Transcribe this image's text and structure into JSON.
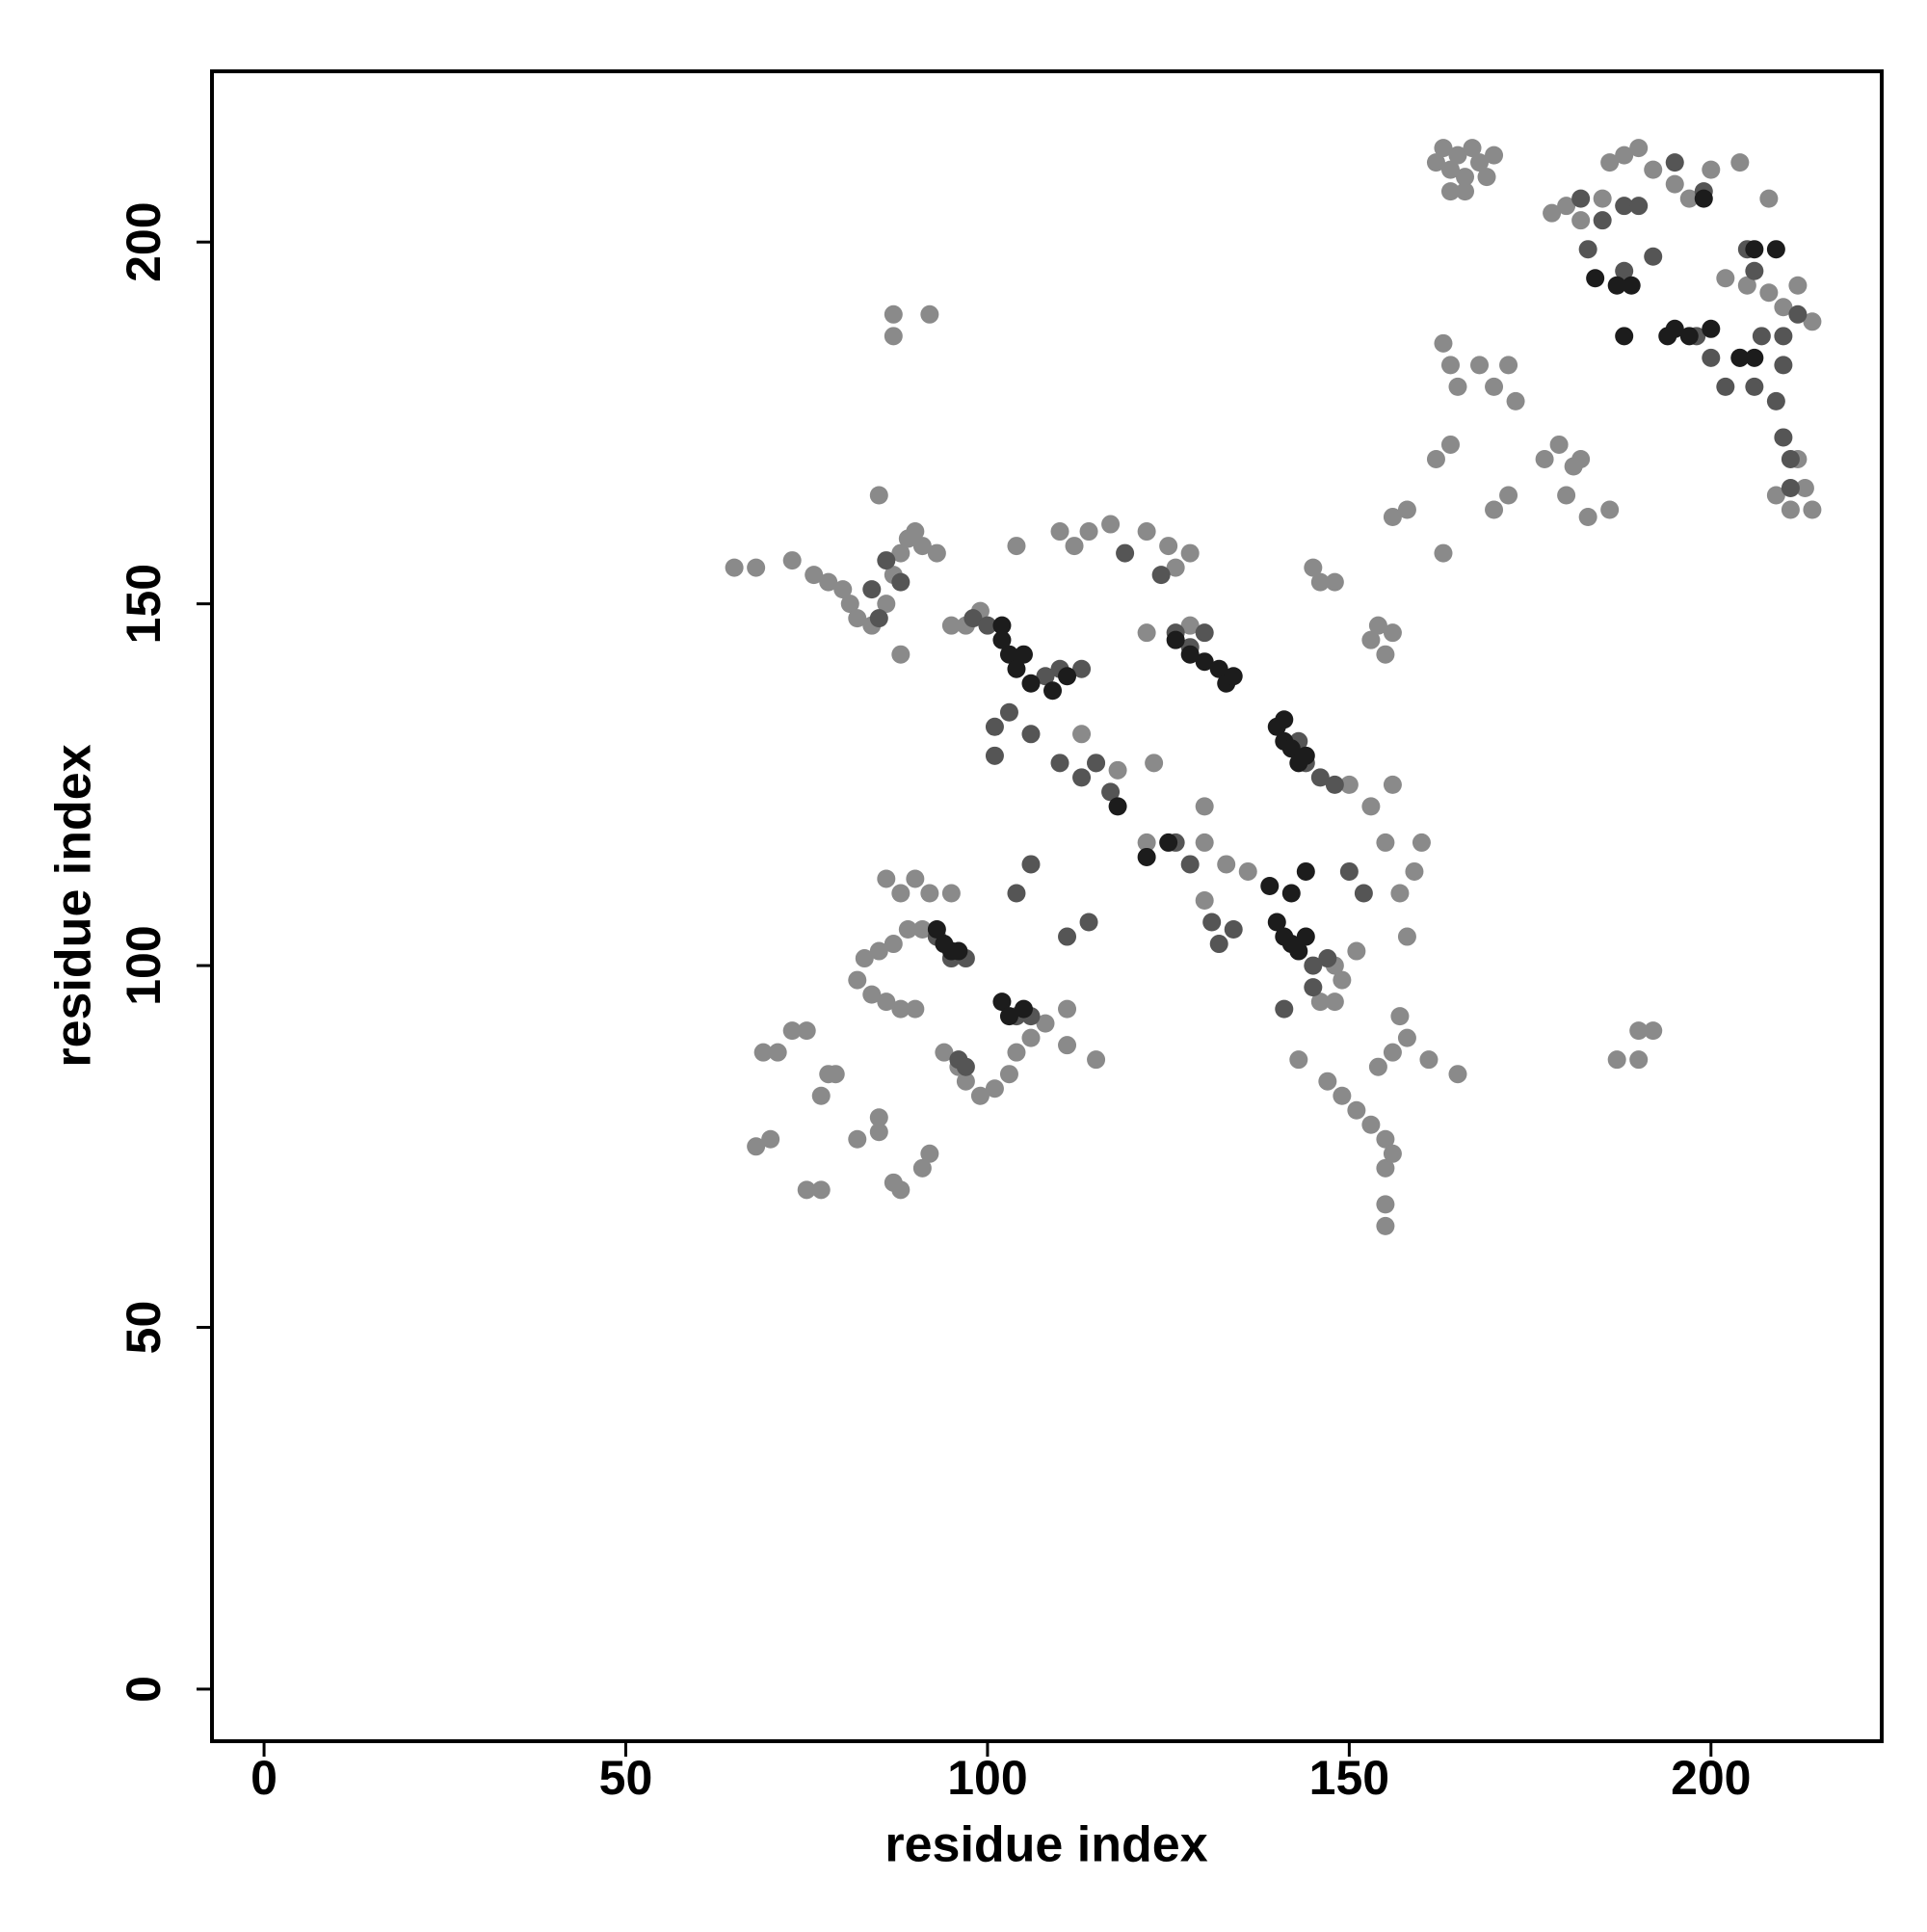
{
  "chart_data": {
    "type": "scatter",
    "xlabel": "residue index",
    "ylabel": "residue index",
    "xlim": [
      -7.2,
      223.6
    ],
    "ylim": [
      -7.2,
      223.6
    ],
    "xticks": [
      0,
      50,
      100,
      150,
      200
    ],
    "yticks": [
      0,
      50,
      100,
      150,
      200
    ],
    "grid": false,
    "series": [
      {
        "color": "#8a8a8a",
        "x": [
          162,
          163,
          164,
          165,
          166,
          167,
          168,
          169,
          170,
          164,
          166,
          178,
          180,
          182,
          185,
          186,
          188,
          190,
          192,
          195,
          197,
          200,
          204,
          208,
          202,
          205,
          208,
          210,
          212,
          214,
          163,
          164,
          165,
          168,
          170,
          172,
          173,
          162,
          164,
          163,
          170,
          172,
          177,
          179,
          181,
          180,
          183,
          186,
          182,
          209,
          211,
          213,
          214,
          212,
          156,
          158,
          65,
          68,
          73,
          76,
          78,
          80,
          81,
          82,
          84,
          86,
          87,
          88,
          89,
          90,
          91,
          93,
          85,
          88,
          95,
          97,
          99,
          87,
          87,
          92,
          110,
          112,
          114,
          117,
          122,
          125,
          126,
          128,
          122,
          128,
          104,
          145,
          146,
          148,
          154,
          153,
          155,
          156,
          150,
          153,
          156,
          155,
          157,
          159,
          158,
          160,
          113,
          115,
          118,
          123,
          86,
          88,
          90,
          92,
          95,
          83,
          85,
          87,
          89,
          91,
          93,
          82,
          84,
          86,
          88,
          90,
          69,
          71,
          73,
          75,
          77,
          78,
          79,
          82,
          85,
          85,
          68,
          70,
          75,
          77,
          87,
          88,
          91,
          92,
          94,
          96,
          97,
          99,
          101,
          103,
          104,
          106,
          108,
          111,
          111,
          115,
          143,
          147,
          149,
          151,
          153,
          155,
          155,
          156,
          155,
          155,
          154,
          156,
          158,
          161,
          165,
          157,
          146,
          148,
          149,
          151,
          148,
          187,
          190,
          190,
          192,
          130,
          122,
          130,
          133,
          130,
          136
        ],
        "y": [
          211,
          213,
          210,
          212,
          209,
          213,
          211,
          209,
          212,
          207,
          207,
          204,
          205,
          203,
          206,
          211,
          212,
          213,
          210,
          208,
          206,
          210,
          211,
          206,
          195,
          194,
          193,
          191,
          194,
          189,
          186,
          183,
          180,
          183,
          180,
          183,
          178,
          170,
          172,
          157,
          163,
          165,
          170,
          172,
          169,
          165,
          162,
          163,
          170,
          165,
          163,
          166,
          163,
          170,
          162,
          163,
          155,
          155,
          156,
          154,
          153,
          152,
          150,
          148,
          147,
          150,
          154,
          157,
          159,
          160,
          158,
          157,
          165,
          143,
          147,
          147,
          149,
          187,
          190,
          190,
          160,
          158,
          160,
          161,
          160,
          158,
          155,
          157,
          146,
          147,
          158,
          155,
          153,
          153,
          147,
          145,
          143,
          146,
          125,
          122,
          125,
          117,
          110,
          113,
          104,
          117,
          132,
          128,
          127,
          128,
          112,
          110,
          112,
          110,
          110,
          101,
          102,
          103,
          105,
          105,
          104,
          98,
          96,
          95,
          94,
          94,
          88,
          88,
          91,
          91,
          82,
          85,
          85,
          76,
          79,
          77,
          75,
          76,
          69,
          69,
          70,
          69,
          72,
          74,
          88,
          86,
          84,
          82,
          83,
          85,
          88,
          90,
          92,
          94,
          89,
          87,
          87,
          84,
          82,
          80,
          78,
          76,
          72,
          74,
          67,
          64,
          86,
          88,
          90,
          87,
          85,
          93,
          95,
          95,
          98,
          102,
          100,
          87,
          87,
          91,
          91,
          122,
          117,
          117,
          114,
          109,
          113
        ]
      },
      {
        "color": "#555555",
        "x": [
          182,
          185,
          188,
          183,
          188,
          190,
          195,
          199,
          192,
          205,
          206,
          207,
          210,
          212,
          210,
          209,
          204,
          202,
          206,
          198,
          200,
          210,
          211,
          211,
          84,
          86,
          88,
          85,
          98,
          100,
          113,
          110,
          108,
          115,
          117,
          113,
          110,
          103,
          101,
          106,
          101,
          126,
          128,
          130,
          124,
          119,
          144,
          146,
          148,
          143,
          93,
          95,
          97,
          104,
          106,
          111,
          114,
          126,
          128,
          131,
          132,
          134,
          150,
          152,
          141,
          145,
          147,
          145,
          104,
          106,
          96,
          97
        ],
        "y": [
          206,
          203,
          205,
          199,
          196,
          205,
          211,
          207,
          198,
          199,
          196,
          187,
          187,
          190,
          183,
          178,
          184,
          180,
          180,
          187,
          184,
          173,
          170,
          166,
          152,
          156,
          153,
          148,
          148,
          147,
          141,
          141,
          140,
          128,
          124,
          126,
          128,
          135,
          133,
          132,
          129,
          146,
          144,
          146,
          154,
          157,
          128,
          126,
          125,
          131,
          104,
          101,
          101,
          110,
          114,
          104,
          106,
          117,
          114,
          106,
          103,
          105,
          113,
          110,
          94,
          100,
          101,
          97,
          93,
          93,
          87,
          86
        ]
      },
      {
        "color": "#1c1c1c",
        "x": [
          102,
          103,
          104,
          106,
          105,
          102,
          109,
          111,
          128,
          130,
          132,
          133,
          134,
          126,
          140,
          141,
          142,
          143,
          144,
          141,
          139,
          140,
          141,
          142,
          143,
          144,
          142,
          144,
          93,
          94,
          95,
          96,
          102,
          103,
          105,
          187,
          189,
          188,
          194,
          195,
          197,
          200,
          204,
          206,
          209,
          206,
          199,
          184,
          125,
          122,
          118
        ],
        "y": [
          145,
          143,
          141,
          139,
          143,
          147,
          138,
          140,
          143,
          142,
          141,
          139,
          140,
          145,
          133,
          131,
          130,
          128,
          129,
          134,
          111,
          106,
          104,
          103,
          102,
          104,
          110,
          113,
          105,
          103,
          102,
          102,
          95,
          93,
          94,
          194,
          194,
          187,
          187,
          188,
          187,
          188,
          184,
          184,
          199,
          199,
          206,
          195,
          117,
          115,
          122
        ]
      }
    ]
  }
}
